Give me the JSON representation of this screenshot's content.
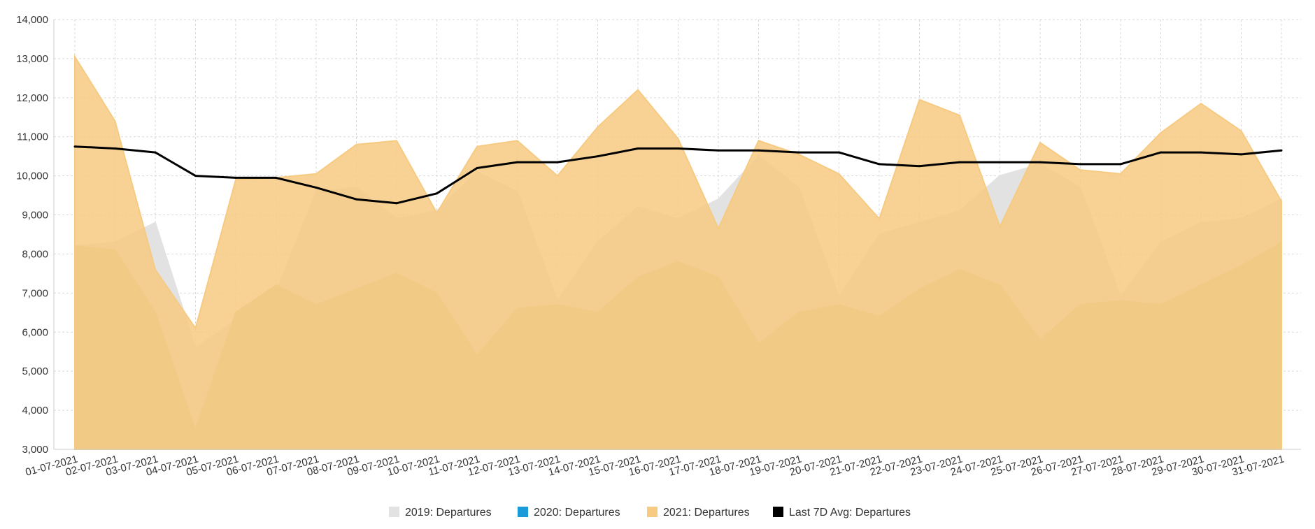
{
  "chart_data": {
    "type": "area",
    "title": "",
    "xlabel": "",
    "ylabel": "",
    "ylim": [
      3000,
      14000
    ],
    "yticks": [
      3000,
      4000,
      5000,
      6000,
      7000,
      8000,
      9000,
      10000,
      11000,
      12000,
      13000,
      14000
    ],
    "ytick_labels": [
      "3,000",
      "4,000",
      "5,000",
      "6,000",
      "7,000",
      "8,000",
      "9,000",
      "10,000",
      "11,000",
      "12,000",
      "13,000",
      "14,000"
    ],
    "grid": true,
    "legend_position": "bottom-center",
    "categories": [
      "01-07-2021",
      "02-07-2021",
      "03-07-2021",
      "04-07-2021",
      "05-07-2021",
      "06-07-2021",
      "07-07-2021",
      "08-07-2021",
      "09-07-2021",
      "10-07-2021",
      "11-07-2021",
      "12-07-2021",
      "13-07-2021",
      "14-07-2021",
      "15-07-2021",
      "16-07-2021",
      "17-07-2021",
      "18-07-2021",
      "19-07-2021",
      "20-07-2021",
      "21-07-2021",
      "22-07-2021",
      "23-07-2021",
      "24-07-2021",
      "25-07-2021",
      "26-07-2021",
      "27-07-2021",
      "28-07-2021",
      "29-07-2021",
      "30-07-2021",
      "31-07-2021"
    ],
    "series": [
      {
        "name": "2019: Departures",
        "kind": "area",
        "color": "#e2e2e2",
        "values": [
          8200,
          8300,
          8800,
          5600,
          6300,
          7000,
          9600,
          9700,
          8900,
          9100,
          10100,
          9600,
          6800,
          8300,
          9200,
          8900,
          9400,
          10500,
          9700,
          6900,
          8500,
          8800,
          9100,
          10000,
          10300,
          9700,
          6900,
          8300,
          8800,
          8900,
          9400
        ]
      },
      {
        "name": "2020: Departures",
        "kind": "area",
        "color": "#d2c7a4",
        "legend_color": "#1a9ad6",
        "values": [
          8200,
          8100,
          6500,
          3500,
          6500,
          7200,
          6700,
          7100,
          7500,
          7000,
          5400,
          6600,
          6700,
          6500,
          7400,
          7800,
          7400,
          5700,
          6500,
          6700,
          6400,
          7100,
          7600,
          7200,
          5800,
          6700,
          6800,
          6700,
          7200,
          7700,
          8300
        ]
      },
      {
        "name": "2021: Departures",
        "kind": "area",
        "color": "#f7ca81",
        "values": [
          13050,
          11400,
          7600,
          6100,
          9900,
          9950,
          10050,
          10800,
          10900,
          9050,
          10750,
          10900,
          10000,
          11250,
          12200,
          10950,
          8650,
          10900,
          10550,
          10050,
          8900,
          11950,
          11550,
          8700,
          10850,
          10150,
          10050,
          11100,
          11850,
          11150,
          9350
        ]
      },
      {
        "name": "Last 7D Avg: Departures",
        "kind": "line",
        "color": "#000000",
        "values": [
          10750,
          10700,
          10600,
          10000,
          9950,
          9950,
          9700,
          9400,
          9300,
          9550,
          10200,
          10350,
          10350,
          10500,
          10700,
          10700,
          10650,
          10650,
          10600,
          10600,
          10300,
          10250,
          10350,
          10350,
          10350,
          10300,
          10300,
          10600,
          10600,
          10550,
          10650
        ]
      }
    ]
  }
}
